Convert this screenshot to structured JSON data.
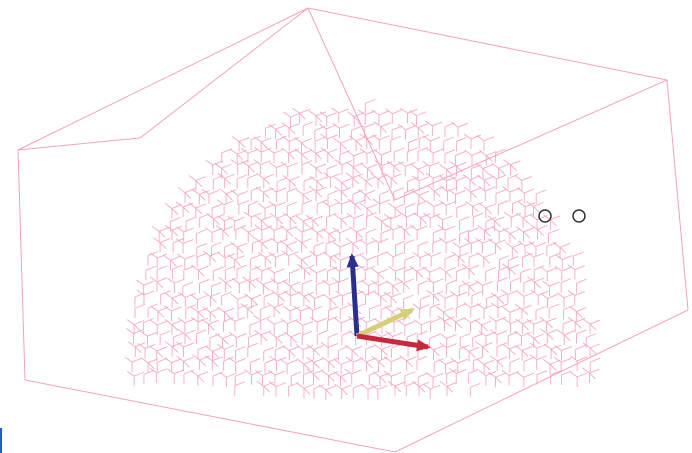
{
  "colors": {
    "background": "#ffffff",
    "bounding_box": "#f2a3bf",
    "lattice": "#f4a8c4",
    "axis_x": "#c8283c",
    "axis_y": "#d6cf7a",
    "axis_z": "#2a2f8c",
    "marker_circle": "#333333",
    "edge_marker": "#1f5fbf"
  },
  "icons": {
    "axis_triad": "xyz-axis-gizmo-icon",
    "markers": [
      "circle-marker-icon",
      "circle-marker-icon"
    ]
  }
}
